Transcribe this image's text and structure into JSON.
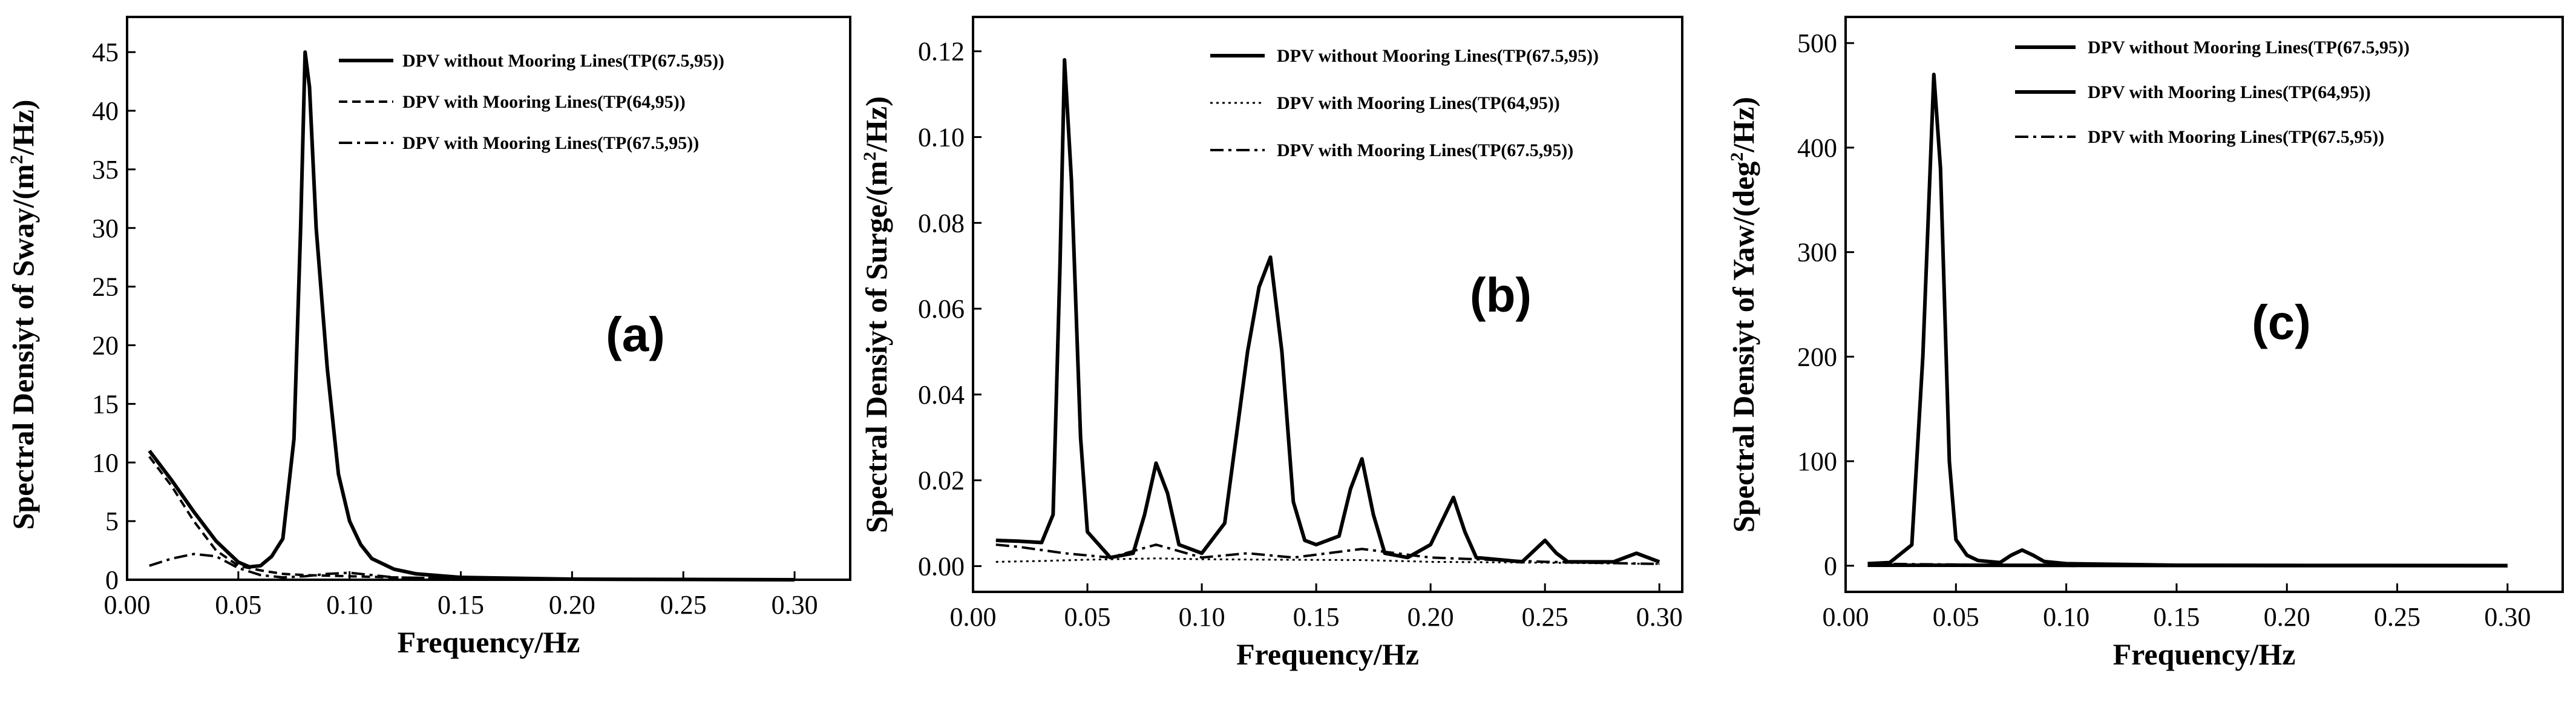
{
  "chart_data": [
    {
      "type": "line",
      "panel_label": "(a)",
      "ylabel_main": "Spectral Densiyt of Sway/(m",
      "ylabel_sup": "2",
      "ylabel_tail": "/Hz)",
      "xlabel": "Frequency/Hz",
      "xlim": [
        0.0,
        0.325
      ],
      "ylim": [
        0,
        48
      ],
      "xticks": [
        0.0,
        0.05,
        0.1,
        0.15,
        0.2,
        0.25,
        0.3
      ],
      "xtick_labels": [
        "0.00",
        "0.05",
        "0.10",
        "0.15",
        "0.20",
        "0.25",
        "0.30"
      ],
      "yticks": [
        0,
        5,
        10,
        15,
        20,
        25,
        30,
        35,
        40,
        45
      ],
      "ytick_labels": [
        "0",
        "5",
        "10",
        "15",
        "20",
        "25",
        "30",
        "35",
        "40",
        "45"
      ],
      "legend_position": "top-right",
      "series": [
        {
          "name": "DPV without Mooring Lines(TP(67.5,95))",
          "style": "solid",
          "points": [
            [
              0.01,
              11.0
            ],
            [
              0.02,
              8.5
            ],
            [
              0.03,
              5.8
            ],
            [
              0.04,
              3.3
            ],
            [
              0.05,
              1.5
            ],
            [
              0.055,
              1.1
            ],
            [
              0.06,
              1.2
            ],
            [
              0.065,
              2.0
            ],
            [
              0.07,
              3.5
            ],
            [
              0.075,
              12
            ],
            [
              0.078,
              30
            ],
            [
              0.08,
              45.0
            ],
            [
              0.082,
              42
            ],
            [
              0.085,
              30
            ],
            [
              0.09,
              18
            ],
            [
              0.095,
              9
            ],
            [
              0.1,
              5.0
            ],
            [
              0.105,
              3.0
            ],
            [
              0.11,
              1.8
            ],
            [
              0.12,
              0.9
            ],
            [
              0.13,
              0.5
            ],
            [
              0.15,
              0.2
            ],
            [
              0.2,
              0.05
            ],
            [
              0.3,
              0.0
            ]
          ]
        },
        {
          "name": "DPV with Mooring Lines(TP(64,95))",
          "style": "dash",
          "points": [
            [
              0.01,
              10.5
            ],
            [
              0.02,
              8.0
            ],
            [
              0.03,
              5.0
            ],
            [
              0.04,
              2.5
            ],
            [
              0.05,
              1.2
            ],
            [
              0.06,
              0.8
            ],
            [
              0.07,
              0.5
            ],
            [
              0.08,
              0.4
            ],
            [
              0.1,
              0.3
            ],
            [
              0.12,
              0.2
            ],
            [
              0.15,
              0.1
            ],
            [
              0.2,
              0.05
            ],
            [
              0.3,
              0.0
            ]
          ]
        },
        {
          "name": "DPV with Mooring Lines(TP(67.5,95))",
          "style": "dashdot",
          "points": [
            [
              0.01,
              1.2
            ],
            [
              0.02,
              1.8
            ],
            [
              0.03,
              2.2
            ],
            [
              0.04,
              2.0
            ],
            [
              0.05,
              1.0
            ],
            [
              0.06,
              0.4
            ],
            [
              0.07,
              0.2
            ],
            [
              0.08,
              0.3
            ],
            [
              0.09,
              0.5
            ],
            [
              0.1,
              0.6
            ],
            [
              0.11,
              0.4
            ],
            [
              0.12,
              0.2
            ],
            [
              0.15,
              0.1
            ],
            [
              0.2,
              0.05
            ],
            [
              0.3,
              0.0
            ]
          ]
        }
      ]
    },
    {
      "type": "line",
      "panel_label": "(b)",
      "ylabel_main": "Spectral Densiyt of Surge/(m",
      "ylabel_sup": "2",
      "ylabel_tail": "/Hz)",
      "xlabel": "Frequency/Hz",
      "xlim": [
        0.0,
        0.31
      ],
      "ylim": [
        -0.006,
        0.128
      ],
      "xticks": [
        0.0,
        0.05,
        0.1,
        0.15,
        0.2,
        0.25,
        0.3
      ],
      "xtick_labels": [
        "0.00",
        "0.05",
        "0.10",
        "0.15",
        "0.20",
        "0.25",
        "0.30"
      ],
      "yticks": [
        0.0,
        0.02,
        0.04,
        0.06,
        0.08,
        0.1,
        0.12
      ],
      "ytick_labels": [
        "0.00",
        "0.02",
        "0.04",
        "0.06",
        "0.08",
        "0.10",
        "0.12"
      ],
      "legend_position": "top-right",
      "series": [
        {
          "name": "DPV without Mooring Lines(TP(67.5,95))",
          "style": "solid",
          "points": [
            [
              0.01,
              0.006
            ],
            [
              0.02,
              0.0058
            ],
            [
              0.03,
              0.0055
            ],
            [
              0.035,
              0.012
            ],
            [
              0.038,
              0.07
            ],
            [
              0.04,
              0.118
            ],
            [
              0.043,
              0.09
            ],
            [
              0.047,
              0.03
            ],
            [
              0.05,
              0.008
            ],
            [
              0.06,
              0.002
            ],
            [
              0.07,
              0.003
            ],
            [
              0.075,
              0.012
            ],
            [
              0.08,
              0.024
            ],
            [
              0.085,
              0.017
            ],
            [
              0.09,
              0.005
            ],
            [
              0.1,
              0.003
            ],
            [
              0.11,
              0.01
            ],
            [
              0.12,
              0.05
            ],
            [
              0.125,
              0.065
            ],
            [
              0.13,
              0.072
            ],
            [
              0.135,
              0.05
            ],
            [
              0.14,
              0.015
            ],
            [
              0.145,
              0.006
            ],
            [
              0.15,
              0.005
            ],
            [
              0.16,
              0.007
            ],
            [
              0.165,
              0.018
            ],
            [
              0.17,
              0.025
            ],
            [
              0.175,
              0.012
            ],
            [
              0.18,
              0.003
            ],
            [
              0.19,
              0.002
            ],
            [
              0.2,
              0.005
            ],
            [
              0.21,
              0.016
            ],
            [
              0.215,
              0.008
            ],
            [
              0.22,
              0.002
            ],
            [
              0.24,
              0.001
            ],
            [
              0.25,
              0.006
            ],
            [
              0.255,
              0.003
            ],
            [
              0.26,
              0.001
            ],
            [
              0.28,
              0.001
            ],
            [
              0.29,
              0.003
            ],
            [
              0.3,
              0.001
            ]
          ]
        },
        {
          "name": "DPV with Mooring Lines(TP(64,95))",
          "style": "dot",
          "points": [
            [
              0.01,
              0.001
            ],
            [
              0.03,
              0.0012
            ],
            [
              0.05,
              0.0015
            ],
            [
              0.08,
              0.0018
            ],
            [
              0.1,
              0.0016
            ],
            [
              0.13,
              0.0015
            ],
            [
              0.17,
              0.0014
            ],
            [
              0.2,
              0.001
            ],
            [
              0.25,
              0.0008
            ],
            [
              0.3,
              0.0005
            ]
          ]
        },
        {
          "name": "DPV with Mooring Lines(TP(67.5,95))",
          "style": "dashdot",
          "points": [
            [
              0.01,
              0.005
            ],
            [
              0.02,
              0.0045
            ],
            [
              0.04,
              0.003
            ],
            [
              0.06,
              0.002
            ],
            [
              0.08,
              0.005
            ],
            [
              0.1,
              0.002
            ],
            [
              0.12,
              0.003
            ],
            [
              0.14,
              0.002
            ],
            [
              0.17,
              0.004
            ],
            [
              0.2,
              0.002
            ],
            [
              0.25,
              0.001
            ],
            [
              0.3,
              0.0005
            ]
          ]
        }
      ]
    },
    {
      "type": "line",
      "panel_label": "(c)",
      "ylabel_main": "Spectral Densiyt of Yaw/(deg",
      "ylabel_sup": "2",
      "ylabel_tail": "/Hz)",
      "xlabel": "Frequency/Hz",
      "xlim": [
        0.0,
        0.325
      ],
      "ylim": [
        -25,
        525
      ],
      "xticks": [
        0.0,
        0.05,
        0.1,
        0.15,
        0.2,
        0.25,
        0.3
      ],
      "xtick_labels": [
        "0.00",
        "0.05",
        "0.10",
        "0.15",
        "0.20",
        "0.25",
        "0.30"
      ],
      "yticks": [
        0,
        100,
        200,
        300,
        400,
        500
      ],
      "ytick_labels": [
        "0",
        "100",
        "200",
        "300",
        "400",
        "500"
      ],
      "legend_position": "top-right",
      "series": [
        {
          "name": "DPV without Mooring Lines(TP(67.5,95))",
          "style": "solid",
          "points": [
            [
              0.01,
              2
            ],
            [
              0.02,
              3
            ],
            [
              0.03,
              20
            ],
            [
              0.035,
              200
            ],
            [
              0.04,
              470
            ],
            [
              0.043,
              380
            ],
            [
              0.047,
              100
            ],
            [
              0.05,
              25
            ],
            [
              0.055,
              10
            ],
            [
              0.06,
              5
            ],
            [
              0.07,
              3
            ],
            [
              0.075,
              10
            ],
            [
              0.08,
              15
            ],
            [
              0.085,
              10
            ],
            [
              0.09,
              4
            ],
            [
              0.1,
              2
            ],
            [
              0.15,
              0.5
            ],
            [
              0.2,
              0.3
            ],
            [
              0.3,
              0.1
            ]
          ]
        },
        {
          "name": "DPV with Mooring Lines(TP(64,95))",
          "style": "solid",
          "points": [
            [
              0.01,
              0.5
            ],
            [
              0.05,
              0.5
            ],
            [
              0.1,
              0.3
            ],
            [
              0.2,
              0.1
            ],
            [
              0.3,
              0.0
            ]
          ]
        },
        {
          "name": "DPV with Mooring Lines(TP(67.5,95))",
          "style": "dashdot",
          "points": [
            [
              0.01,
              2
            ],
            [
              0.03,
              1.5
            ],
            [
              0.06,
              1
            ],
            [
              0.1,
              0.5
            ],
            [
              0.2,
              0.2
            ],
            [
              0.3,
              0.1
            ]
          ]
        }
      ]
    }
  ]
}
